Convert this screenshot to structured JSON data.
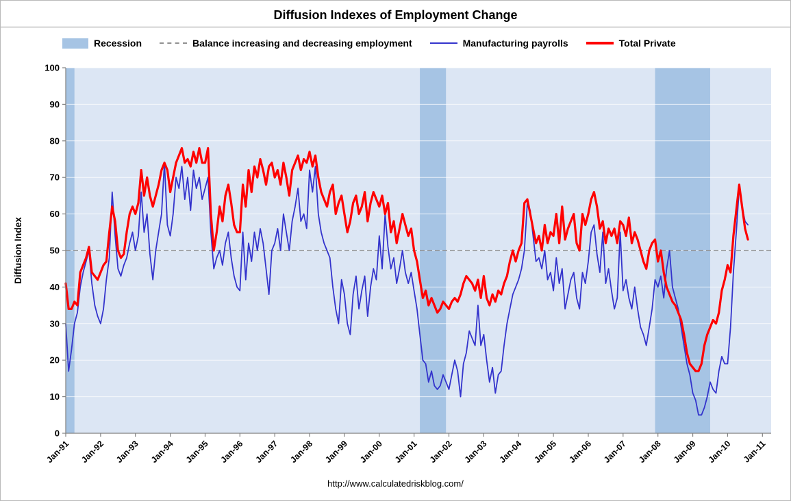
{
  "page": {
    "title": "Diffusion Indexes of Employment Change",
    "footer": "http://www.calculatedriskblog.com/"
  },
  "legend": [
    {
      "label": "Recession",
      "swatch": "band"
    },
    {
      "label": "Balance increasing and decreasing employment",
      "swatch": "dashed"
    },
    {
      "label": "Manufacturing payrolls",
      "swatch": "thin-line"
    },
    {
      "label": "Total Private",
      "swatch": "thick-line"
    }
  ],
  "colors": {
    "plot_background": "#dce6f4",
    "recession_band": "#a6c4e4",
    "gridline": "#ffffff",
    "axis": "#808080",
    "balance_line": "#909090",
    "manufacturing": "#3333cc",
    "total_private": "#ff0000"
  },
  "chart_data": {
    "type": "line",
    "title": "Diffusion Indexes of Employment Change",
    "xlabel": "",
    "ylabel": "Diffusion Index",
    "ylim": [
      0,
      100
    ],
    "y_ticks": [
      0,
      10,
      20,
      30,
      40,
      50,
      60,
      70,
      80,
      90,
      100
    ],
    "frequency": "monthly",
    "x_start": "Jan-1991",
    "x_tick_labels": [
      "Jan-91",
      "Jan-92",
      "Jan-93",
      "Jan-94",
      "Jan-95",
      "Jan-96",
      "Jan-97",
      "Jan-98",
      "Jan-99",
      "Jan-00",
      "Jan-01",
      "Jan-02",
      "Jan-03",
      "Jan-04",
      "Jan-05",
      "Jan-06",
      "Jan-07",
      "Jan-08",
      "Jan-09",
      "Jan-10",
      "Jan-11"
    ],
    "axis_month_span": 243,
    "balance_line_value": 50,
    "legend_position": "top",
    "grid": "horizontal",
    "recessions": [
      {
        "label": "1990-91 recession",
        "start": "Jan-91",
        "end": "Mar-91",
        "start_index": 0,
        "end_index": 3
      },
      {
        "label": "2001 recession",
        "start": "Mar-01",
        "end": "Nov-01",
        "start_index": 122,
        "end_index": 131
      },
      {
        "label": "2007-09 recession",
        "start": "Dec-07",
        "end": "Jun-09",
        "start_index": 203,
        "end_index": 222
      }
    ],
    "series": [
      {
        "name": "Manufacturing payrolls",
        "color": "#3333cc",
        "stroke_width": 1.8,
        "values": [
          30,
          17,
          23,
          30,
          33,
          40,
          44,
          47,
          50,
          41,
          35,
          32,
          30,
          34,
          42,
          48,
          66,
          54,
          45,
          43,
          46,
          48,
          52,
          55,
          50,
          54,
          66,
          55,
          60,
          49,
          42,
          50,
          55,
          60,
          74,
          57,
          54,
          60,
          70,
          67,
          73,
          64,
          70,
          61,
          72,
          67,
          70,
          64,
          67,
          70,
          55,
          45,
          48,
          50,
          46,
          52,
          55,
          48,
          43,
          40,
          39,
          55,
          42,
          52,
          47,
          55,
          50,
          56,
          52,
          45,
          38,
          50,
          52,
          56,
          50,
          60,
          55,
          50,
          58,
          62,
          67,
          58,
          60,
          56,
          72,
          66,
          73,
          60,
          55,
          52,
          50,
          48,
          40,
          34,
          30,
          42,
          38,
          30,
          27,
          38,
          43,
          34,
          39,
          43,
          32,
          40,
          45,
          42,
          54,
          45,
          60,
          51,
          45,
          48,
          41,
          45,
          50,
          44,
          41,
          44,
          39,
          34,
          27,
          20,
          19,
          14,
          17,
          13,
          12,
          13,
          16,
          14,
          12,
          16,
          20,
          17,
          10,
          19,
          22,
          28,
          26,
          24,
          35,
          24,
          27,
          20,
          14,
          18,
          11,
          16,
          17,
          24,
          30,
          34,
          38,
          40,
          42,
          45,
          50,
          63,
          61,
          54,
          47,
          48,
          45,
          50,
          42,
          44,
          39,
          48,
          41,
          45,
          34,
          38,
          42,
          44,
          37,
          34,
          44,
          41,
          47,
          55,
          57,
          49,
          44,
          55,
          41,
          45,
          39,
          34,
          37,
          55,
          39,
          42,
          37,
          34,
          40,
          34,
          29,
          27,
          24,
          29,
          34,
          42,
          40,
          43,
          37,
          45,
          50,
          40,
          37,
          34,
          29,
          24,
          19,
          16,
          11,
          9,
          5,
          5,
          7,
          10,
          14,
          12,
          11,
          17,
          21,
          19,
          19,
          29,
          44,
          55,
          67,
          62,
          58,
          57
        ]
      },
      {
        "name": "Total Private",
        "color": "#ff0000",
        "stroke_width": 3.2,
        "values": [
          41,
          34,
          34,
          36,
          35,
          44,
          46,
          48,
          51,
          44,
          43,
          42,
          44,
          46,
          47,
          55,
          62,
          58,
          50,
          48,
          49,
          55,
          60,
          62,
          60,
          63,
          72,
          65,
          70,
          65,
          62,
          65,
          68,
          72,
          74,
          72,
          66,
          70,
          74,
          76,
          78,
          74,
          75,
          73,
          77,
          74,
          78,
          74,
          74,
          78,
          60,
          50,
          55,
          62,
          58,
          65,
          68,
          63,
          57,
          55,
          55,
          68,
          62,
          72,
          66,
          73,
          70,
          75,
          72,
          68,
          73,
          74,
          70,
          72,
          68,
          74,
          70,
          65,
          72,
          74,
          76,
          72,
          75,
          74,
          77,
          73,
          76,
          70,
          66,
          64,
          62,
          66,
          68,
          60,
          63,
          65,
          60,
          55,
          58,
          63,
          65,
          60,
          62,
          66,
          58,
          63,
          66,
          64,
          62,
          65,
          60,
          63,
          55,
          58,
          52,
          56,
          60,
          57,
          54,
          56,
          50,
          47,
          42,
          37,
          39,
          35,
          37,
          35,
          33,
          34,
          36,
          35,
          34,
          36,
          37,
          36,
          38,
          41,
          43,
          42,
          41,
          39,
          42,
          37,
          43,
          37,
          35,
          38,
          36,
          39,
          38,
          41,
          43,
          47,
          50,
          47,
          50,
          52,
          63,
          64,
          60,
          56,
          52,
          54,
          50,
          57,
          52,
          55,
          54,
          60,
          52,
          62,
          53,
          56,
          58,
          60,
          52,
          50,
          60,
          57,
          60,
          64,
          66,
          62,
          56,
          58,
          52,
          56,
          54,
          56,
          52,
          58,
          57,
          54,
          59,
          52,
          55,
          53,
          50,
          47,
          45,
          50,
          52,
          53,
          47,
          50,
          44,
          40,
          38,
          36,
          35,
          33,
          31,
          27,
          22,
          19,
          18,
          17,
          17,
          19,
          24,
          27,
          29,
          31,
          30,
          33,
          39,
          42,
          46,
          44,
          54,
          61,
          68,
          62,
          56,
          53
        ]
      }
    ]
  }
}
